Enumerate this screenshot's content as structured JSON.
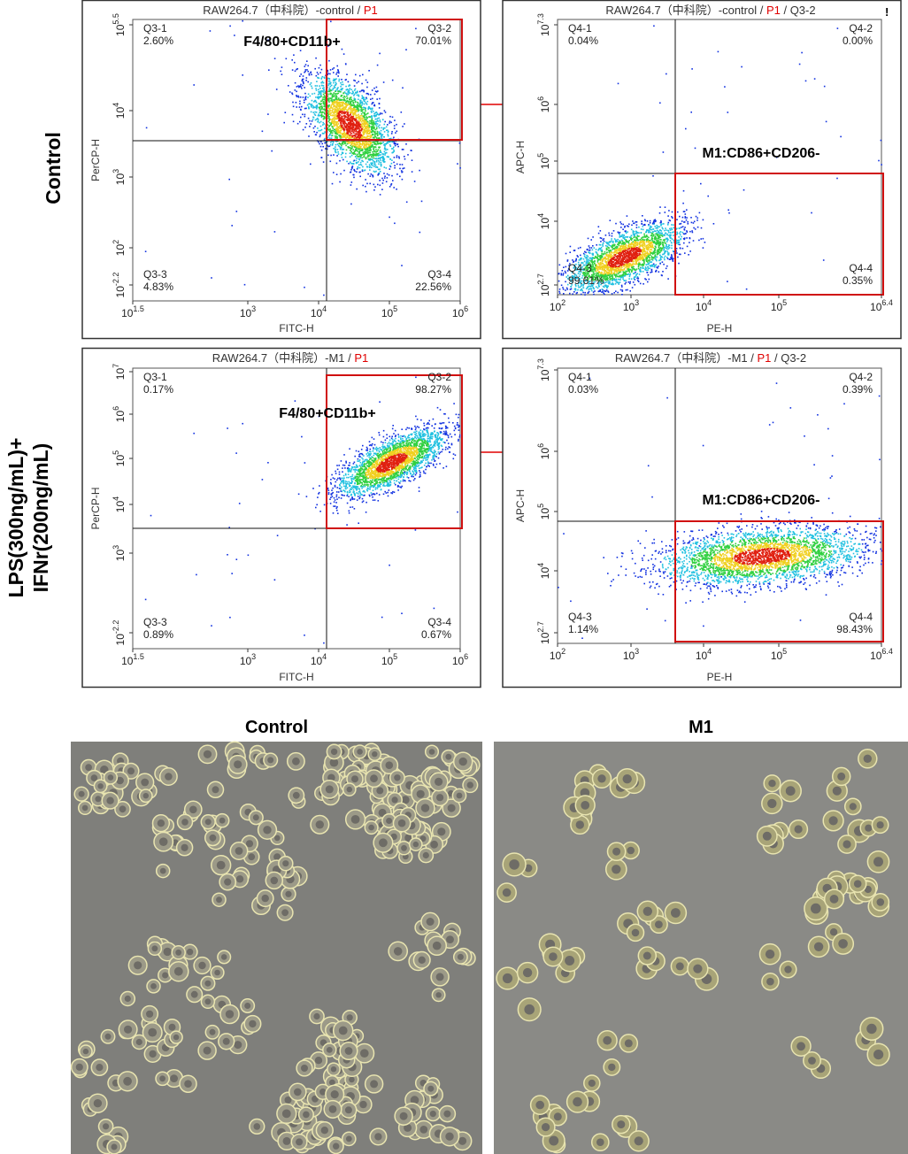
{
  "row_labels": [
    [
      "Control"
    ],
    [
      "LPS(300ng/mL)+",
      "IFNr(200ng/mL)"
    ]
  ],
  "axis_base": "10",
  "panels": [
    {
      "title": [
        {
          "text": "RAW264.7（中科院）-control / "
        },
        {
          "text": "P1",
          "color": "#e00000"
        }
      ],
      "x_label": "FITC-H",
      "y_label": "PerCP-H",
      "x_ticks": [
        "1.5",
        "3",
        "4",
        "5",
        "6"
      ],
      "y_ticks": [
        "5.5",
        "4",
        "3",
        "2",
        "-2.2"
      ],
      "quadrants": [
        {
          "name": "Q3-1",
          "pct": "2.60%"
        },
        {
          "name": "Q3-2",
          "pct": "70.01%"
        },
        {
          "name": "Q3-3",
          "pct": "4.83%"
        },
        {
          "name": "Q3-4",
          "pct": "22.56%"
        }
      ],
      "gate_label": "F4/80+CD11b+"
    },
    {
      "title": [
        {
          "text": "RAW264.7（中科院）-control / "
        },
        {
          "text": "P1",
          "color": "#e00000"
        },
        {
          "text": " / Q3-2"
        }
      ],
      "marker": "!",
      "x_label": "PE-H",
      "y_label": "APC-H",
      "x_ticks": [
        "2",
        "3",
        "4",
        "5",
        "6.4"
      ],
      "y_ticks": [
        "7.3",
        "6",
        "5",
        "4",
        "2.7"
      ],
      "quadrants": [
        {
          "name": "Q4-1",
          "pct": "0.04%"
        },
        {
          "name": "Q4-2",
          "pct": "0.00%"
        },
        {
          "name": "Q4-3",
          "pct": "99.61%"
        },
        {
          "name": "Q4-4",
          "pct": "0.35%"
        }
      ],
      "gate_label": "M1:CD86+CD206-"
    },
    {
      "title": [
        {
          "text": "RAW264.7（中科院）-M1 / "
        },
        {
          "text": "P1",
          "color": "#e00000"
        }
      ],
      "x_label": "FITC-H",
      "y_label": "PerCP-H",
      "x_ticks": [
        "1.5",
        "3",
        "4",
        "5",
        "6"
      ],
      "y_ticks": [
        "7",
        "6",
        "5",
        "4",
        "3",
        "-2.2"
      ],
      "quadrants": [
        {
          "name": "Q3-1",
          "pct": "0.17%"
        },
        {
          "name": "Q3-2",
          "pct": "98.27%"
        },
        {
          "name": "Q3-3",
          "pct": "0.89%"
        },
        {
          "name": "Q3-4",
          "pct": "0.67%"
        }
      ],
      "gate_label": "F4/80+CD11b+"
    },
    {
      "title": [
        {
          "text": "RAW264.7（中科院）-M1 / "
        },
        {
          "text": "P1",
          "color": "#e00000"
        },
        {
          "text": " / Q3-2"
        }
      ],
      "x_label": "PE-H",
      "y_label": "APC-H",
      "x_ticks": [
        "2",
        "3",
        "4",
        "5",
        "6.4"
      ],
      "y_ticks": [
        "7.3",
        "6",
        "5",
        "4",
        "2.7"
      ],
      "quadrants": [
        {
          "name": "Q4-1",
          "pct": "0.03%"
        },
        {
          "name": "Q4-2",
          "pct": "0.39%"
        },
        {
          "name": "Q4-3",
          "pct": "1.14%"
        },
        {
          "name": "Q4-4",
          "pct": "98.43%"
        }
      ],
      "gate_label": "M1:CD86+CD206-"
    }
  ],
  "images": [
    {
      "label": "Control"
    },
    {
      "label": "M1"
    }
  ]
}
